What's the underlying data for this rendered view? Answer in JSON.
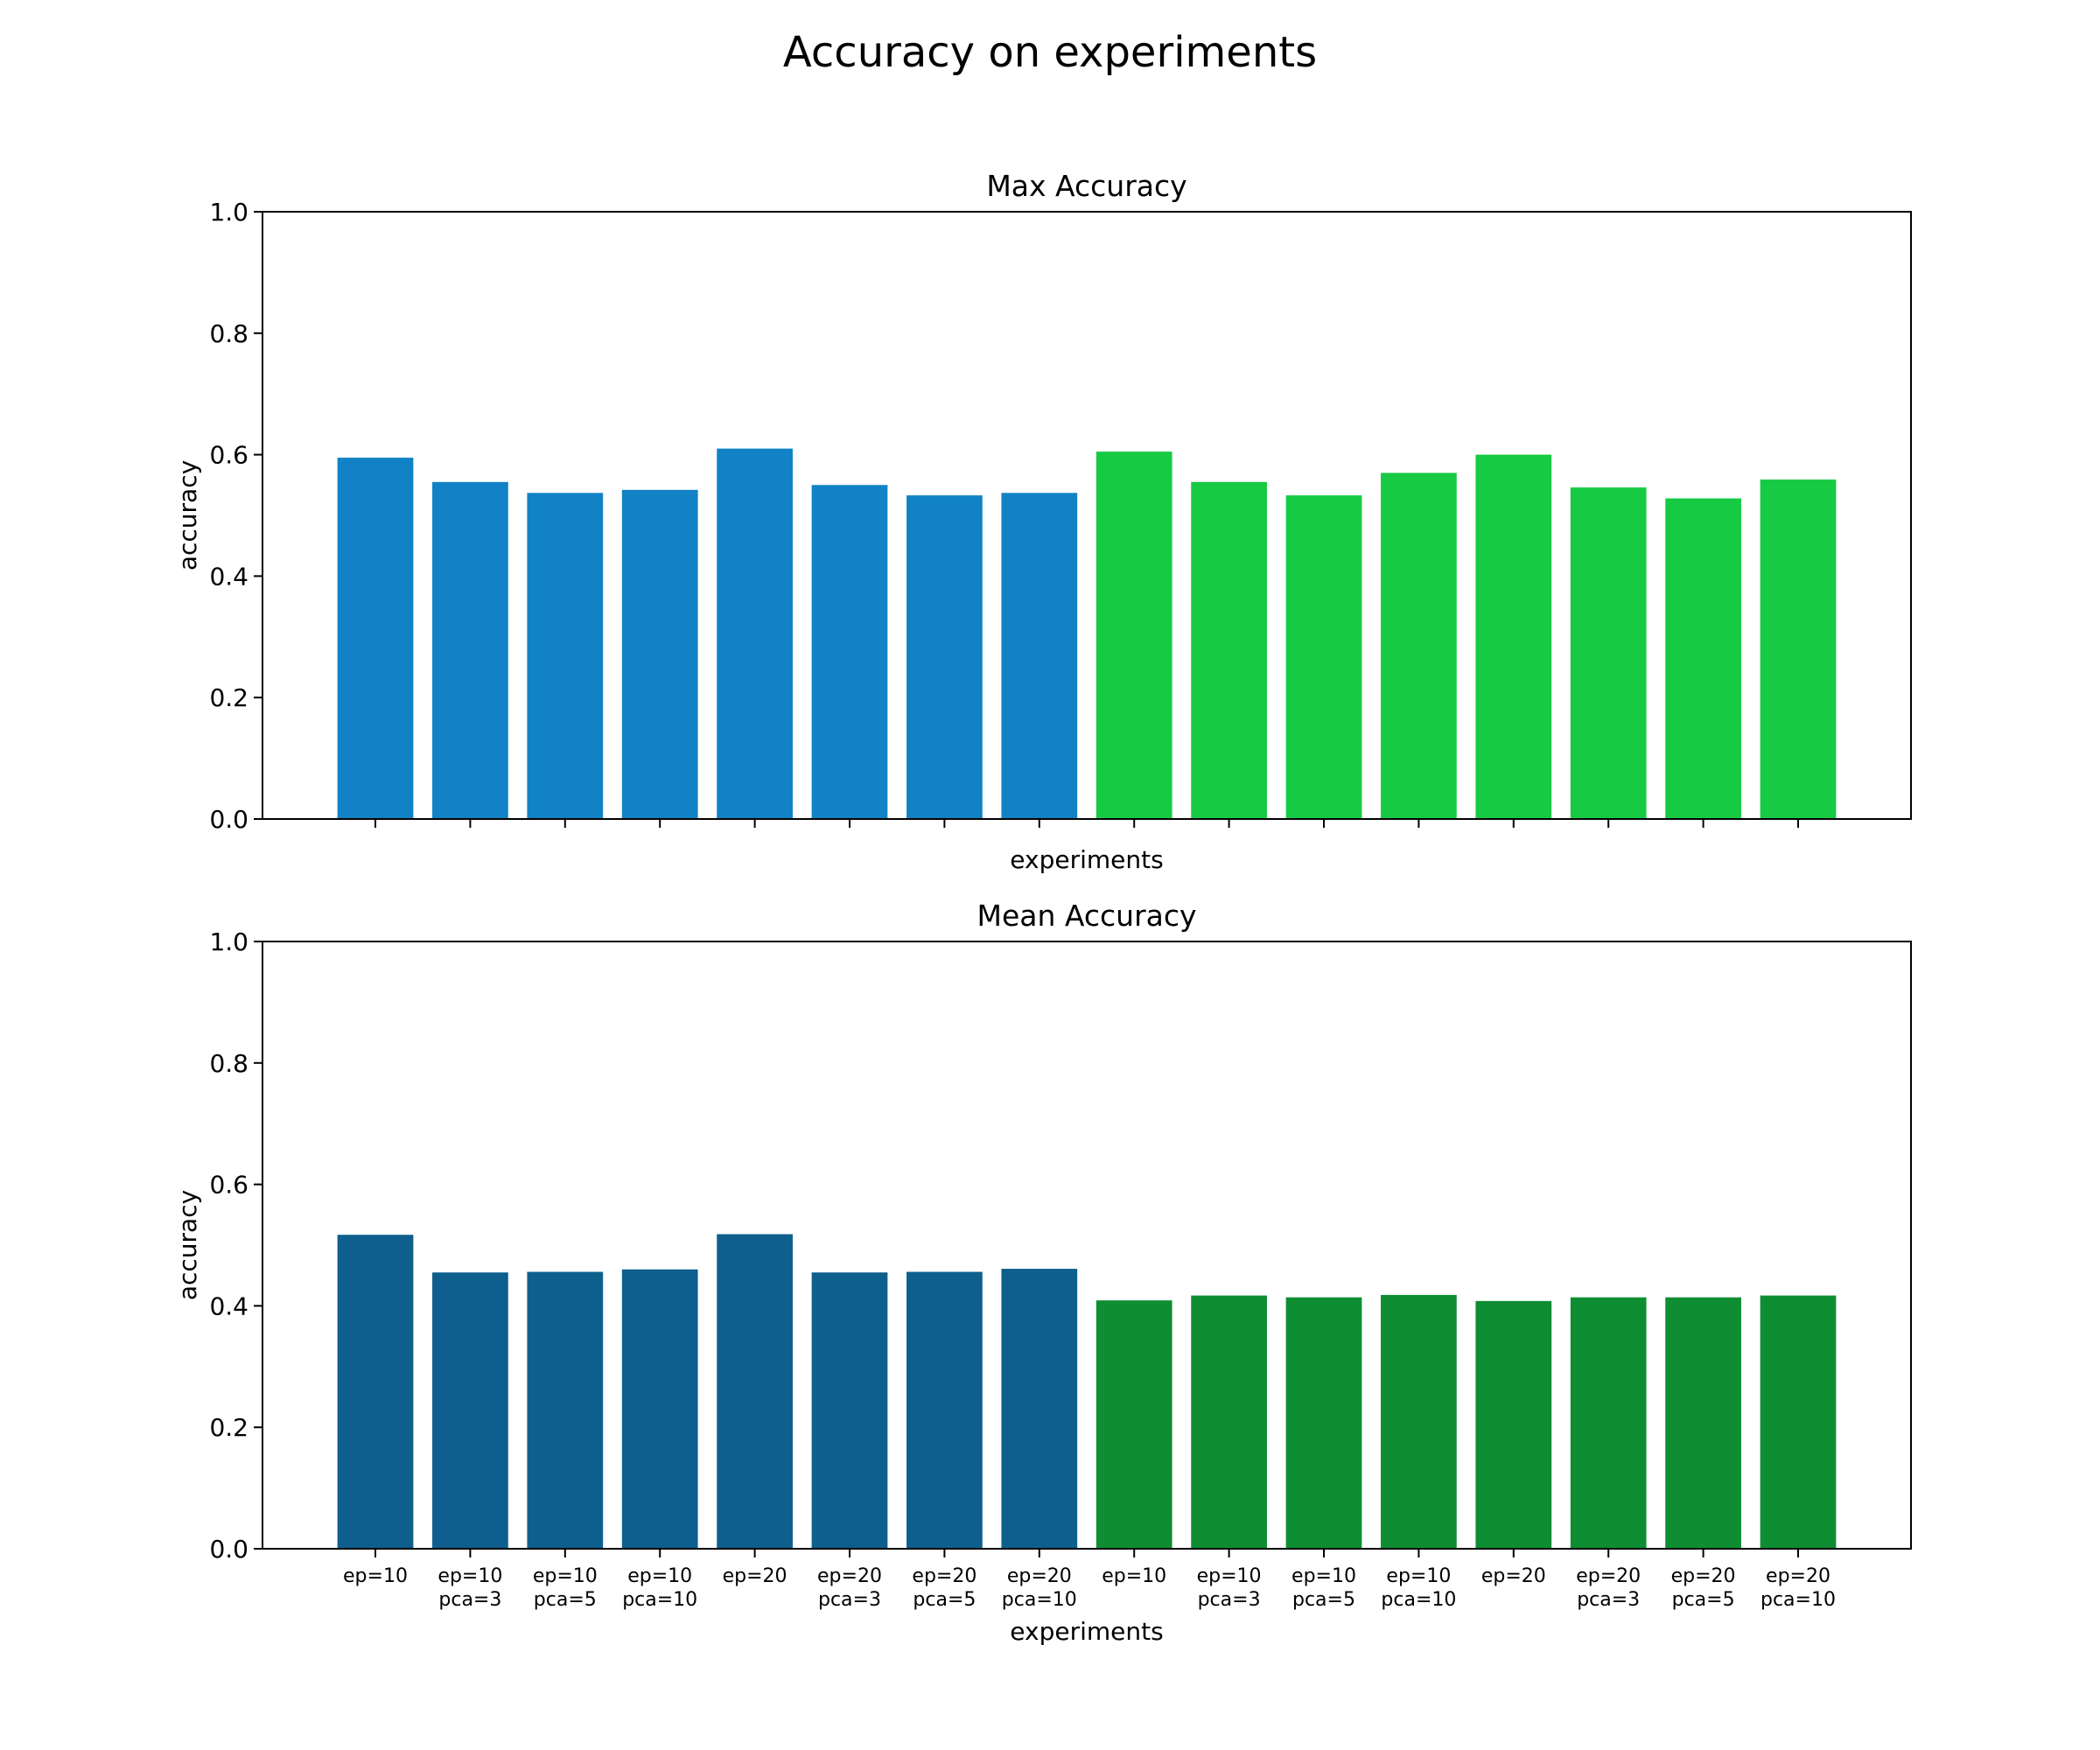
{
  "figure": {
    "title": "Accuracy on experiments"
  },
  "chart_data": [
    {
      "type": "bar",
      "title": "Max Accuracy",
      "xlabel": "experiments",
      "ylabel": "accuracy",
      "ylim": [
        0,
        1
      ],
      "yticks": [
        "0.0",
        "0.2",
        "0.4",
        "0.6",
        "0.8",
        "1.0"
      ],
      "show_xtick_labels": false,
      "categories": [
        [
          "ep=10"
        ],
        [
          "ep=10",
          "pca=3"
        ],
        [
          "ep=10",
          "pca=5"
        ],
        [
          "ep=10",
          "pca=10"
        ],
        [
          "ep=20"
        ],
        [
          "ep=20",
          "pca=3"
        ],
        [
          "ep=20",
          "pca=5"
        ],
        [
          "ep=20",
          "pca=10"
        ],
        [
          "ep=10"
        ],
        [
          "ep=10",
          "pca=3"
        ],
        [
          "ep=10",
          "pca=5"
        ],
        [
          "ep=10",
          "pca=10"
        ],
        [
          "ep=20"
        ],
        [
          "ep=20",
          "pca=3"
        ],
        [
          "ep=20",
          "pca=5"
        ],
        [
          "ep=20",
          "pca=10"
        ]
      ],
      "values": [
        0.595,
        0.555,
        0.537,
        0.542,
        0.61,
        0.55,
        0.533,
        0.537,
        0.605,
        0.555,
        0.533,
        0.57,
        0.6,
        0.546,
        0.528,
        0.559
      ],
      "colors": [
        "#1182c5",
        "#1182c5",
        "#1182c5",
        "#1182c5",
        "#1182c5",
        "#1182c5",
        "#1182c5",
        "#1182c5",
        "#17ca44",
        "#17ca44",
        "#17ca44",
        "#17ca44",
        "#17ca44",
        "#17ca44",
        "#17ca44",
        "#17ca44"
      ],
      "grid": false,
      "legend": "none"
    },
    {
      "type": "bar",
      "title": "Mean Accuracy",
      "xlabel": "experiments",
      "ylabel": "accuracy",
      "ylim": [
        0,
        1
      ],
      "yticks": [
        "0.0",
        "0.2",
        "0.4",
        "0.6",
        "0.8",
        "1.0"
      ],
      "show_xtick_labels": true,
      "categories": [
        [
          "ep=10"
        ],
        [
          "ep=10",
          "pca=3"
        ],
        [
          "ep=10",
          "pca=5"
        ],
        [
          "ep=10",
          "pca=10"
        ],
        [
          "ep=20"
        ],
        [
          "ep=20",
          "pca=3"
        ],
        [
          "ep=20",
          "pca=5"
        ],
        [
          "ep=20",
          "pca=10"
        ],
        [
          "ep=10"
        ],
        [
          "ep=10",
          "pca=3"
        ],
        [
          "ep=10",
          "pca=5"
        ],
        [
          "ep=10",
          "pca=10"
        ],
        [
          "ep=20"
        ],
        [
          "ep=20",
          "pca=3"
        ],
        [
          "ep=20",
          "pca=5"
        ],
        [
          "ep=20",
          "pca=10"
        ]
      ],
      "values": [
        0.517,
        0.455,
        0.456,
        0.46,
        0.518,
        0.455,
        0.456,
        0.461,
        0.409,
        0.417,
        0.414,
        0.418,
        0.408,
        0.414,
        0.414,
        0.417
      ],
      "colors": [
        "#0e5f8d",
        "#0e5f8d",
        "#0e5f8d",
        "#0e5f8d",
        "#0e5f8d",
        "#0e5f8d",
        "#0e5f8d",
        "#0e5f8d",
        "#0f8d33",
        "#0f8d33",
        "#0f8d33",
        "#0f8d33",
        "#0f8d33",
        "#0f8d33",
        "#0f8d33",
        "#0f8d33"
      ],
      "grid": false,
      "legend": "none"
    }
  ]
}
